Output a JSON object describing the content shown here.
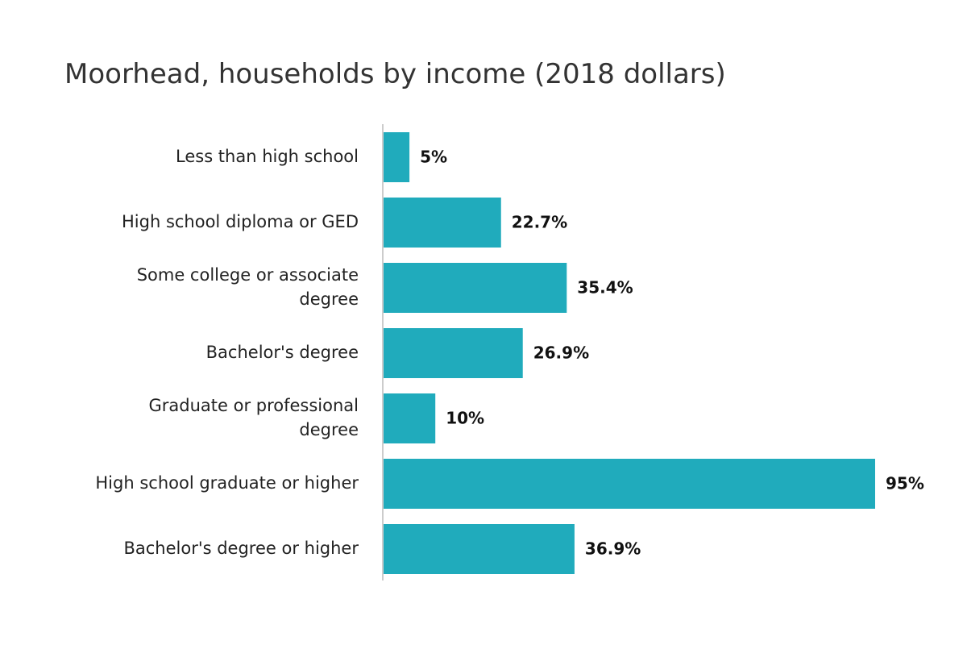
{
  "chart_data": {
    "type": "bar",
    "orientation": "horizontal",
    "title": "Moorhead, households by income (2018 dollars)",
    "categories": [
      "Less than high school",
      "High school diploma or GED",
      "Some college or associate degree",
      "Bachelor's degree",
      "Graduate or professional degree",
      "High school graduate or higher",
      "Bachelor's degree or higher"
    ],
    "values": [
      5,
      22.7,
      35.4,
      26.9,
      10,
      95,
      36.9
    ],
    "value_labels": [
      "5%",
      "22.7%",
      "35.4%",
      "26.9%",
      "10%",
      "95%",
      "36.9%"
    ],
    "xlim": [
      0,
      100
    ],
    "grid": false,
    "legend": "none",
    "bar_color": "#20abbc",
    "axis_color": "#cccccc"
  }
}
